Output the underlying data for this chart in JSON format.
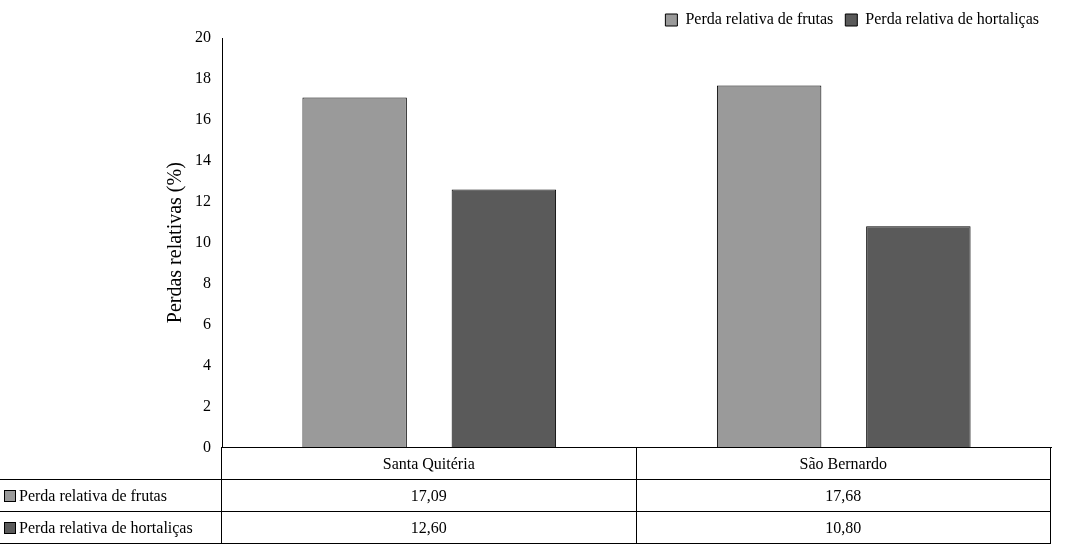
{
  "chart_data": {
    "type": "bar",
    "ylabel": "Perdas relativas (%)",
    "categories": [
      "Santa Quitéria",
      "São Bernardo"
    ],
    "series": [
      {
        "name": "Perda relativa de frutas",
        "color": "#9a9a9a",
        "values": [
          17.09,
          17.68
        ],
        "value_labels": [
          "17,09",
          "17,68"
        ]
      },
      {
        "name": "Perda relativa de hortaliças",
        "color": "#5a5a5a",
        "values": [
          12.6,
          10.8
        ],
        "value_labels": [
          "12,60",
          "10,80"
        ]
      }
    ],
    "ylim": [
      0,
      20
    ],
    "yticks": [
      0,
      2,
      4,
      6,
      8,
      10,
      12,
      14,
      16,
      18,
      20
    ],
    "grid": false,
    "legend": "top right"
  }
}
